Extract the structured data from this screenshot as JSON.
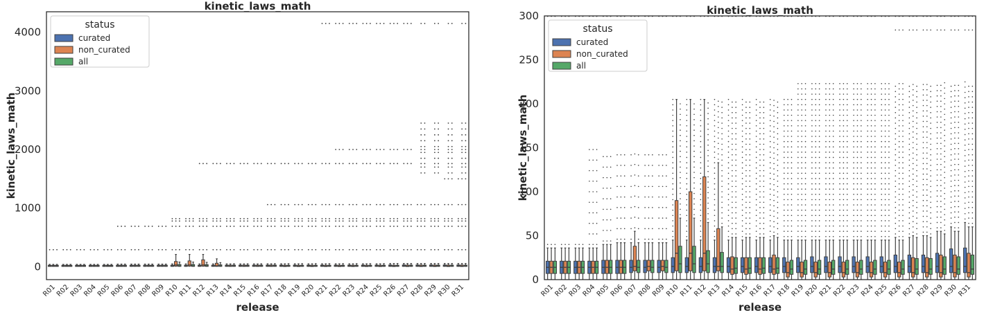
{
  "colors": {
    "curated": "#4c72b0",
    "non_curated": "#dd8452",
    "all": "#55a868",
    "line": "#3f3f3f",
    "frame": "#262626"
  },
  "chart_data": [
    {
      "type": "box",
      "title": "kinetic_laws_math",
      "xlabel": "release",
      "ylabel": "kinetic_laws_math",
      "categories": [
        "R01",
        "R02",
        "R03",
        "R04",
        "R05",
        "R06",
        "R07",
        "R08",
        "R09",
        "R10",
        "R11",
        "R12",
        "R13",
        "R14",
        "R15",
        "R16",
        "R17",
        "R18",
        "R19",
        "R20",
        "R21",
        "R22",
        "R23",
        "R24",
        "R25",
        "R26",
        "R27",
        "R28",
        "R29",
        "R30",
        "R31"
      ],
      "ylim": [
        -220,
        4350
      ],
      "yticks": [
        0,
        1000,
        2000,
        3000,
        4000
      ],
      "ytick_labels": [
        "0",
        "1000",
        "2000",
        "3000",
        "4000"
      ],
      "legend": {
        "title": "status",
        "items": [
          "curated",
          "non_curated",
          "all"
        ],
        "placement": "top-left"
      },
      "series": [
        {
          "name": "curated",
          "q1": [
            5,
            5,
            5,
            5,
            5,
            5,
            6,
            6,
            6,
            6,
            6,
            6,
            6,
            6,
            6,
            6,
            6,
            6,
            6,
            6,
            6,
            6,
            6,
            6,
            6,
            6,
            6,
            6,
            6,
            6,
            6
          ],
          "median": [
            14,
            14,
            14,
            14,
            14,
            14,
            14,
            14,
            14,
            14,
            15,
            15,
            15,
            15,
            15,
            15,
            15,
            15,
            15,
            15,
            15,
            15,
            15,
            15,
            15,
            15,
            15,
            15,
            15,
            15,
            15
          ],
          "q3": [
            25,
            25,
            25,
            25,
            25,
            26,
            26,
            26,
            26,
            27,
            27,
            27,
            27,
            27,
            27,
            27,
            28,
            28,
            28,
            28,
            28,
            28,
            28,
            28,
            28,
            30,
            30,
            30,
            30,
            30,
            30
          ],
          "whisker_high": [
            40,
            40,
            40,
            40,
            40,
            45,
            45,
            45,
            45,
            48,
            48,
            48,
            48,
            48,
            48,
            48,
            50,
            50,
            50,
            50,
            50,
            50,
            50,
            50,
            50,
            55,
            55,
            55,
            55,
            55,
            55
          ]
        },
        {
          "name": "non_curated",
          "q1": [
            5,
            5,
            5,
            5,
            5,
            5,
            6,
            6,
            6,
            10,
            10,
            10,
            6,
            5,
            5,
            5,
            5,
            3,
            3,
            3,
            3,
            3,
            3,
            3,
            3,
            3,
            3,
            3,
            3,
            3,
            3
          ],
          "median": [
            14,
            14,
            14,
            14,
            14,
            14,
            14,
            14,
            14,
            30,
            30,
            30,
            15,
            12,
            12,
            12,
            12,
            10,
            10,
            10,
            10,
            10,
            10,
            10,
            10,
            10,
            10,
            10,
            10,
            10,
            10
          ],
          "q3": [
            25,
            25,
            25,
            25,
            25,
            26,
            26,
            26,
            26,
            90,
            100,
            118,
            60,
            27,
            27,
            27,
            28,
            25,
            25,
            25,
            25,
            25,
            25,
            25,
            25,
            25,
            28,
            28,
            28,
            28,
            28
          ],
          "whisker_high": [
            40,
            40,
            40,
            40,
            40,
            45,
            45,
            45,
            45,
            210,
            210,
            210,
            135,
            48,
            48,
            48,
            50,
            50,
            50,
            50,
            50,
            50,
            50,
            50,
            50,
            55,
            55,
            55,
            55,
            55,
            55
          ]
        },
        {
          "name": "all",
          "q1": [
            5,
            5,
            5,
            5,
            5,
            5,
            6,
            6,
            6,
            6,
            6,
            6,
            6,
            6,
            6,
            6,
            6,
            6,
            6,
            6,
            6,
            6,
            6,
            6,
            6,
            6,
            6,
            6,
            6,
            6,
            6
          ],
          "median": [
            14,
            14,
            14,
            14,
            14,
            14,
            14,
            14,
            14,
            15,
            15,
            15,
            15,
            14,
            14,
            14,
            14,
            13,
            13,
            13,
            13,
            13,
            13,
            13,
            13,
            13,
            13,
            13,
            13,
            13,
            13
          ],
          "q3": [
            25,
            25,
            25,
            25,
            25,
            26,
            26,
            26,
            26,
            38,
            38,
            35,
            32,
            27,
            27,
            27,
            28,
            25,
            25,
            25,
            25,
            25,
            25,
            25,
            25,
            25,
            27,
            27,
            27,
            27,
            27
          ],
          "whisker_high": [
            40,
            40,
            40,
            40,
            40,
            45,
            45,
            45,
            45,
            80,
            80,
            75,
            70,
            50,
            50,
            50,
            52,
            52,
            52,
            52,
            52,
            52,
            52,
            52,
            52,
            55,
            55,
            55,
            55,
            55,
            55
          ]
        }
      ],
      "outlier_levels": {
        "R01": [
          290
        ],
        "R02": [
          290
        ],
        "R03": [
          290
        ],
        "R04": [
          290
        ],
        "R05": [
          290
        ],
        "R06": [
          290,
          690
        ],
        "R07": [
          290,
          690
        ],
        "R08": [
          290,
          690
        ],
        "R09": [
          290,
          690
        ],
        "R10": [
          290,
          690,
          780,
          820
        ],
        "R11": [
          290,
          690,
          780,
          820
        ],
        "R12": [
          290,
          690,
          780,
          820,
          1760
        ],
        "R13": [
          290,
          690,
          780,
          820,
          1760
        ],
        "R14": [
          290,
          690,
          780,
          820,
          1760
        ],
        "R15": [
          290,
          690,
          780,
          820,
          1760
        ],
        "R16": [
          290,
          690,
          780,
          820,
          1760
        ],
        "R17": [
          290,
          690,
          780,
          820,
          1060,
          1760
        ],
        "R18": [
          290,
          690,
          780,
          820,
          1060,
          1760
        ],
        "R19": [
          290,
          690,
          780,
          820,
          1060,
          1760
        ],
        "R20": [
          290,
          690,
          780,
          820,
          1060,
          1760
        ],
        "R21": [
          290,
          690,
          780,
          820,
          1060,
          1760,
          4150
        ],
        "R22": [
          290,
          690,
          780,
          820,
          1060,
          1760,
          2000,
          4150
        ],
        "R23": [
          290,
          690,
          780,
          820,
          1060,
          1760,
          2000,
          4150
        ],
        "R24": [
          290,
          690,
          780,
          820,
          1060,
          1760,
          2000,
          4150
        ],
        "R25": [
          290,
          690,
          780,
          820,
          1060,
          1760,
          2000,
          4150
        ],
        "R26": [
          290,
          690,
          780,
          820,
          1060,
          1760,
          2000,
          4150
        ],
        "R27": [
          290,
          690,
          780,
          820,
          1060,
          1760,
          2000,
          4150
        ],
        "R28": [
          290,
          690,
          780,
          820,
          1060,
          1600,
          1700,
          1760,
          1850,
          1950,
          2000,
          2050,
          2150,
          2250,
          2350,
          2450,
          4150
        ],
        "R29": [
          290,
          690,
          780,
          820,
          1060,
          1600,
          1700,
          1760,
          1850,
          1950,
          2000,
          2050,
          2150,
          2250,
          2350,
          2450,
          4150
        ],
        "R30": [
          290,
          690,
          780,
          820,
          1060,
          1500,
          1600,
          1700,
          1760,
          1850,
          1950,
          2000,
          2050,
          2150,
          2250,
          2350,
          2450,
          4150
        ],
        "R31": [
          290,
          690,
          780,
          820,
          1060,
          1500,
          1600,
          1700,
          1760,
          1850,
          1950,
          2000,
          2050,
          2150,
          2250,
          2350,
          2450,
          4150
        ]
      }
    },
    {
      "type": "box",
      "title": "kinetic_laws_math",
      "xlabel": "release",
      "ylabel": "kinetic_laws_math",
      "categories": [
        "R01",
        "R02",
        "R03",
        "R04",
        "R05",
        "R06",
        "R07",
        "R08",
        "R09",
        "R10",
        "R11",
        "R12",
        "R13",
        "R14",
        "R15",
        "R16",
        "R17",
        "R18",
        "R19",
        "R20",
        "R21",
        "R22",
        "R23",
        "R24",
        "R25",
        "R26",
        "R27",
        "R28",
        "R29",
        "R30",
        "R31"
      ],
      "ylim": [
        0,
        300
      ],
      "yticks": [
        0,
        50,
        100,
        150,
        200,
        250,
        300
      ],
      "ytick_labels": [
        "0",
        "50",
        "100",
        "150",
        "200",
        "250",
        "300"
      ],
      "legend": {
        "title": "status",
        "items": [
          "curated",
          "non_curated",
          "all"
        ],
        "placement": "top-left"
      },
      "series": [
        {
          "name": "curated",
          "q1": [
            7,
            7,
            7,
            7,
            7,
            7,
            8,
            8,
            8,
            8,
            8,
            8,
            8,
            8,
            8,
            8,
            8,
            8,
            8,
            8,
            8,
            8,
            8,
            8,
            8,
            8,
            8,
            8,
            8,
            8,
            8
          ],
          "median": [
            14,
            14,
            14,
            14,
            14,
            14,
            14,
            14,
            14,
            15,
            15,
            15,
            15,
            15,
            15,
            15,
            15,
            15,
            15,
            15,
            15,
            15,
            15,
            15,
            15,
            15,
            15,
            15,
            15,
            15,
            15
          ],
          "q3": [
            21,
            21,
            21,
            21,
            22,
            22,
            22,
            22,
            22,
            25,
            25,
            25,
            25,
            25,
            25,
            25,
            25,
            25,
            25,
            26,
            26,
            26,
            26,
            26,
            26,
            28,
            28,
            28,
            30,
            35,
            36
          ],
          "whisker_high": [
            36,
            36,
            36,
            36,
            40,
            42,
            42,
            42,
            42,
            45,
            45,
            45,
            45,
            45,
            45,
            45,
            45,
            45,
            45,
            45,
            45,
            45,
            45,
            45,
            45,
            48,
            48,
            50,
            55,
            60,
            65
          ]
        },
        {
          "name": "non_curated",
          "q1": [
            7,
            7,
            7,
            7,
            7,
            7,
            10,
            10,
            10,
            10,
            10,
            10,
            10,
            6,
            6,
            6,
            6,
            3,
            3,
            3,
            3,
            3,
            3,
            3,
            3,
            3,
            3,
            3,
            3,
            3,
            3
          ],
          "median": [
            14,
            14,
            14,
            14,
            14,
            14,
            15,
            15,
            15,
            30,
            30,
            30,
            15,
            12,
            12,
            12,
            12,
            8,
            8,
            8,
            8,
            8,
            8,
            8,
            8,
            8,
            8,
            8,
            8,
            8,
            8
          ],
          "q3": [
            21,
            21,
            21,
            21,
            22,
            22,
            38,
            22,
            22,
            90,
            100,
            117,
            58,
            26,
            25,
            25,
            28,
            20,
            20,
            20,
            20,
            20,
            20,
            20,
            20,
            20,
            25,
            25,
            28,
            28,
            30
          ],
          "whisker_high": [
            36,
            36,
            36,
            36,
            40,
            42,
            55,
            42,
            42,
            205,
            205,
            205,
            133,
            48,
            48,
            48,
            50,
            45,
            45,
            45,
            45,
            45,
            45,
            45,
            45,
            45,
            50,
            50,
            55,
            55,
            60
          ]
        },
        {
          "name": "all",
          "q1": [
            7,
            7,
            7,
            7,
            7,
            7,
            8,
            8,
            8,
            8,
            8,
            8,
            8,
            7,
            7,
            7,
            7,
            6,
            6,
            6,
            6,
            6,
            6,
            6,
            6,
            6,
            6,
            6,
            6,
            6,
            6
          ],
          "median": [
            14,
            14,
            14,
            14,
            14,
            14,
            14,
            14,
            14,
            18,
            18,
            18,
            15,
            13,
            13,
            13,
            13,
            12,
            12,
            12,
            12,
            12,
            12,
            12,
            12,
            12,
            12,
            12,
            12,
            12,
            12
          ],
          "q3": [
            21,
            21,
            21,
            21,
            22,
            22,
            22,
            22,
            22,
            38,
            38,
            33,
            31,
            25,
            25,
            25,
            25,
            22,
            22,
            22,
            22,
            22,
            22,
            22,
            22,
            22,
            24,
            24,
            26,
            26,
            28
          ],
          "whisker_high": [
            36,
            36,
            36,
            36,
            40,
            42,
            42,
            42,
            42,
            70,
            70,
            65,
            60,
            48,
            48,
            48,
            48,
            45,
            45,
            45,
            45,
            45,
            45,
            45,
            45,
            45,
            48,
            48,
            52,
            55,
            60
          ]
        }
      ]
    }
  ]
}
